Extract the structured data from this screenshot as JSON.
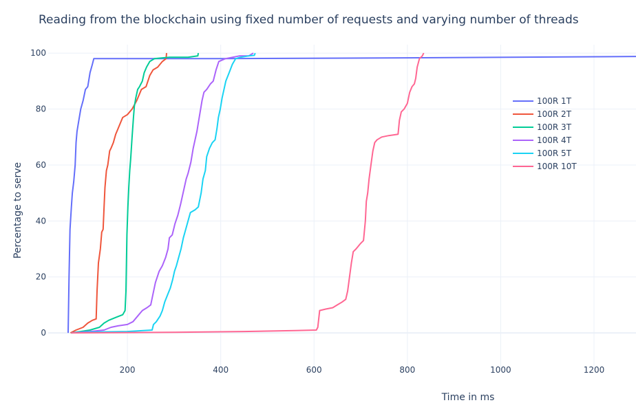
{
  "chart_data": {
    "type": "line",
    "title": "Reading from the blockchain using fixed number of requests and varying number of threads",
    "xlabel": "Time in ms",
    "ylabel": "Percentage to serve",
    "xlim": [
      45,
      1290
    ],
    "ylim": [
      -13,
      103
    ],
    "x_ticks": [
      200,
      400,
      600,
      800,
      1000,
      1200
    ],
    "y_ticks": [
      0,
      20,
      40,
      60,
      80,
      100
    ],
    "x_tick_labels": [
      "200",
      "400",
      "600",
      "800",
      "1000",
      "1200"
    ],
    "y_tick_labels": [
      "0",
      "20",
      "40",
      "60",
      "80",
      "100"
    ],
    "grid": true,
    "legend_position": "right",
    "series": [
      {
        "name": "100R 1T",
        "color": "#636efa",
        "points": [
          [
            73,
            0
          ],
          [
            75,
            20
          ],
          [
            77,
            37
          ],
          [
            80,
            45
          ],
          [
            82,
            50
          ],
          [
            85,
            54
          ],
          [
            88,
            60
          ],
          [
            90,
            68
          ],
          [
            92,
            72
          ],
          [
            95,
            75
          ],
          [
            100,
            80
          ],
          [
            105,
            83
          ],
          [
            110,
            87
          ],
          [
            115,
            88
          ],
          [
            120,
            93
          ],
          [
            125,
            96
          ],
          [
            128,
            98
          ],
          [
            400,
            98
          ],
          [
            800,
            98.3
          ],
          [
            1300,
            98.8
          ]
        ]
      },
      {
        "name": "100R 2T",
        "color": "#EF553B",
        "points": [
          [
            78,
            0
          ],
          [
            90,
            1
          ],
          [
            105,
            2
          ],
          [
            115,
            3.5
          ],
          [
            125,
            4.5
          ],
          [
            133,
            5
          ],
          [
            135,
            15
          ],
          [
            138,
            25
          ],
          [
            142,
            30
          ],
          [
            145,
            36
          ],
          [
            148,
            37
          ],
          [
            150,
            45
          ],
          [
            152,
            52
          ],
          [
            155,
            58
          ],
          [
            158,
            60
          ],
          [
            162,
            65
          ],
          [
            165,
            66
          ],
          [
            170,
            68
          ],
          [
            175,
            71
          ],
          [
            180,
            73
          ],
          [
            185,
            75
          ],
          [
            190,
            77
          ],
          [
            200,
            78
          ],
          [
            210,
            80
          ],
          [
            220,
            83
          ],
          [
            230,
            87
          ],
          [
            240,
            88
          ],
          [
            248,
            92
          ],
          [
            255,
            94
          ],
          [
            265,
            95
          ],
          [
            275,
            97
          ],
          [
            283,
            98
          ],
          [
            284,
            100
          ]
        ]
      },
      {
        "name": "100R 3T",
        "color": "#00cc96",
        "points": [
          [
            80,
            0
          ],
          [
            100,
            0.5
          ],
          [
            120,
            1
          ],
          [
            140,
            2
          ],
          [
            150,
            3.5
          ],
          [
            160,
            4.5
          ],
          [
            175,
            5.5
          ],
          [
            190,
            6.5
          ],
          [
            195,
            8
          ],
          [
            197,
            15
          ],
          [
            199,
            35
          ],
          [
            201,
            45
          ],
          [
            203,
            52
          ],
          [
            205,
            58
          ],
          [
            207,
            62
          ],
          [
            210,
            70
          ],
          [
            213,
            77
          ],
          [
            215,
            81
          ],
          [
            218,
            84
          ],
          [
            222,
            87
          ],
          [
            226,
            88
          ],
          [
            232,
            90
          ],
          [
            236,
            93
          ],
          [
            241,
            95
          ],
          [
            248,
            97
          ],
          [
            258,
            98
          ],
          [
            290,
            98.5
          ],
          [
            330,
            98.5
          ],
          [
            351,
            99
          ],
          [
            352,
            100
          ]
        ]
      },
      {
        "name": "100R 4T",
        "color": "#ab63fa",
        "points": [
          [
            80,
            0
          ],
          [
            120,
            0.5
          ],
          [
            150,
            1
          ],
          [
            165,
            2
          ],
          [
            180,
            2.5
          ],
          [
            200,
            3
          ],
          [
            212,
            4
          ],
          [
            222,
            6
          ],
          [
            232,
            8
          ],
          [
            242,
            9
          ],
          [
            250,
            10
          ],
          [
            255,
            14
          ],
          [
            260,
            18
          ],
          [
            268,
            22
          ],
          [
            275,
            24
          ],
          [
            282,
            27
          ],
          [
            287,
            30
          ],
          [
            290,
            34
          ],
          [
            296,
            35
          ],
          [
            302,
            39
          ],
          [
            308,
            42
          ],
          [
            314,
            46
          ],
          [
            318,
            49
          ],
          [
            322,
            52
          ],
          [
            326,
            55
          ],
          [
            330,
            57
          ],
          [
            336,
            61
          ],
          [
            341,
            66
          ],
          [
            345,
            69
          ],
          [
            349,
            72
          ],
          [
            352,
            75
          ],
          [
            356,
            79
          ],
          [
            360,
            83
          ],
          [
            364,
            86
          ],
          [
            370,
            87
          ],
          [
            378,
            89
          ],
          [
            384,
            90
          ],
          [
            390,
            94
          ],
          [
            396,
            97
          ],
          [
            410,
            98
          ],
          [
            440,
            99
          ],
          [
            460,
            99
          ],
          [
            470,
            100
          ]
        ]
      },
      {
        "name": "100R 5T",
        "color": "#19d3f3",
        "points": [
          [
            80,
            0
          ],
          [
            130,
            0.3
          ],
          [
            200,
            0.5
          ],
          [
            253,
            1
          ],
          [
            256,
            3
          ],
          [
            262,
            4
          ],
          [
            270,
            6
          ],
          [
            275,
            8
          ],
          [
            280,
            11
          ],
          [
            287,
            14
          ],
          [
            292,
            16
          ],
          [
            297,
            19
          ],
          [
            301,
            22
          ],
          [
            305,
            24
          ],
          [
            310,
            27
          ],
          [
            315,
            30
          ],
          [
            320,
            34
          ],
          [
            325,
            37
          ],
          [
            330,
            40
          ],
          [
            335,
            43
          ],
          [
            345,
            44
          ],
          [
            352,
            45
          ],
          [
            358,
            50
          ],
          [
            362,
            55
          ],
          [
            367,
            58
          ],
          [
            370,
            63
          ],
          [
            376,
            66
          ],
          [
            382,
            68
          ],
          [
            388,
            69
          ],
          [
            392,
            73
          ],
          [
            395,
            77
          ],
          [
            399,
            80
          ],
          [
            403,
            84
          ],
          [
            407,
            87
          ],
          [
            411,
            90
          ],
          [
            418,
            93
          ],
          [
            425,
            96
          ],
          [
            432,
            98
          ],
          [
            442,
            98.5
          ],
          [
            460,
            99
          ],
          [
            472,
            99.2
          ],
          [
            474,
            100
          ]
        ]
      },
      {
        "name": "100R 10T",
        "color": "#FF6692",
        "points": [
          [
            80,
            0
          ],
          [
            300,
            0.2
          ],
          [
            450,
            0.5
          ],
          [
            560,
            0.8
          ],
          [
            605,
            1
          ],
          [
            608,
            2
          ],
          [
            612,
            8
          ],
          [
            625,
            8.5
          ],
          [
            640,
            9
          ],
          [
            650,
            10
          ],
          [
            660,
            11
          ],
          [
            668,
            12
          ],
          [
            672,
            15
          ],
          [
            676,
            20
          ],
          [
            680,
            25
          ],
          [
            684,
            29
          ],
          [
            690,
            30
          ],
          [
            695,
            31
          ],
          [
            700,
            32
          ],
          [
            706,
            33
          ],
          [
            710,
            40
          ],
          [
            712,
            47
          ],
          [
            715,
            50
          ],
          [
            718,
            55
          ],
          [
            722,
            60
          ],
          [
            726,
            65
          ],
          [
            730,
            68
          ],
          [
            735,
            69
          ],
          [
            745,
            70
          ],
          [
            760,
            70.5
          ],
          [
            780,
            71
          ],
          [
            783,
            76
          ],
          [
            787,
            79
          ],
          [
            793,
            80
          ],
          [
            800,
            82
          ],
          [
            805,
            86
          ],
          [
            810,
            88
          ],
          [
            815,
            89
          ],
          [
            818,
            91
          ],
          [
            821,
            95
          ],
          [
            826,
            98
          ],
          [
            832,
            99
          ],
          [
            835,
            100
          ]
        ]
      }
    ]
  }
}
